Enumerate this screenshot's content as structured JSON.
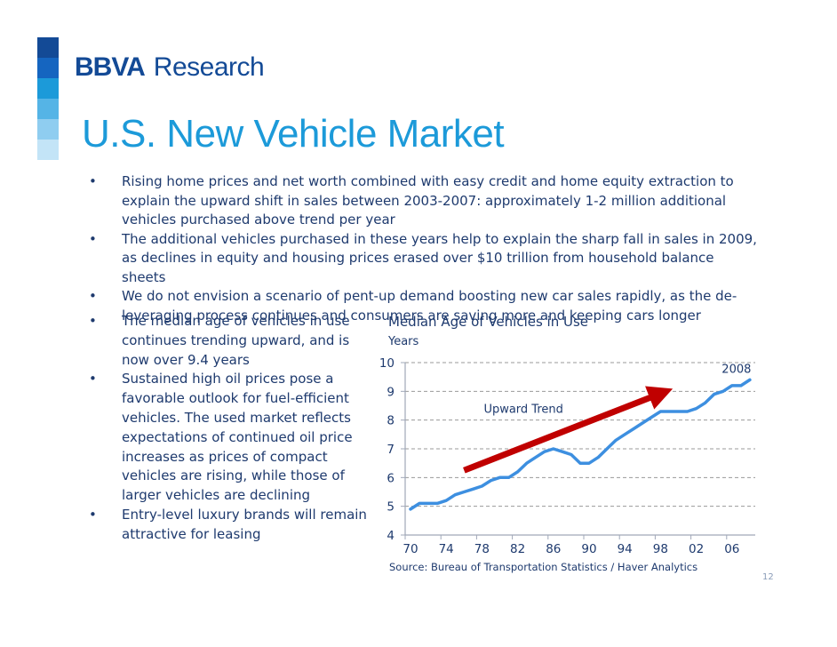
{
  "brand": {
    "logo_text": "BBVA",
    "sub_text": "Research",
    "logo_colors": [
      "#134a96",
      "#1565c0",
      "#1c9ad9",
      "#55b4e6",
      "#8fcdf0",
      "#c3e4f7"
    ]
  },
  "title": "U.S. New Vehicle Market",
  "bullets_top": [
    {
      "marker": "•",
      "text": "Rising home prices and net worth combined with easy credit and home equity extraction to explain the upward shift in sales between 2003-2007: approximately 1-2 million additional vehicles purchased above trend per year"
    },
    {
      "marker": "•",
      "text": "The additional vehicles purchased in these years help to explain the sharp fall in sales in 2009, as declines in equity and housing prices erased over $10 trillion from household balance sheets"
    },
    {
      "marker": "•",
      "text": "We do not envision a scenario of pent-up demand boosting new car sales rapidly, as the de-leveraging process continues and consumers are saving more and keeping cars longer"
    }
  ],
  "bullets_left": [
    {
      "marker": "•",
      "text": "The median age of vehicles in use continues trending upward, and is now over 9.4 years"
    },
    {
      "marker": "•",
      "text": "Sustained high oil prices pose a favorable outlook for fuel-efficient vehicles. The used market reflects expectations of continued oil price increases as prices of compact vehicles are rising, while those of larger vehicles are declining"
    },
    {
      "marker": "•",
      "text": "Entry-level luxury brands will remain attractive for leasing"
    }
  ],
  "chart_data": {
    "type": "line",
    "title": "Median Age of Vehicles in Use",
    "ylabel": "Years",
    "xlabel": "",
    "ylim": [
      4,
      10
    ],
    "xlim": [
      1970,
      2009
    ],
    "yticks": [
      4,
      5,
      6,
      7,
      8,
      9,
      10
    ],
    "xticks": [
      1970,
      1974,
      1978,
      1982,
      1986,
      1990,
      1994,
      1998,
      2002,
      2006
    ],
    "xtick_labels": [
      "70",
      "74",
      "78",
      "82",
      "86",
      "90",
      "94",
      "98",
      "02",
      "06"
    ],
    "grid": "horizontal-dashed",
    "series": [
      {
        "name": "Median Age of Vehicles in Use",
        "color": "#3d8fe0",
        "x": [
          1970,
          1971,
          1972,
          1973,
          1974,
          1975,
          1976,
          1977,
          1978,
          1979,
          1980,
          1981,
          1982,
          1983,
          1984,
          1985,
          1986,
          1987,
          1988,
          1989,
          1990,
          1991,
          1992,
          1993,
          1994,
          1995,
          1996,
          1997,
          1998,
          1999,
          2000,
          2001,
          2002,
          2003,
          2004,
          2005,
          2006,
          2007,
          2008
        ],
        "values": [
          4.9,
          5.1,
          5.1,
          5.1,
          5.2,
          5.4,
          5.5,
          5.6,
          5.7,
          5.9,
          6.0,
          6.0,
          6.2,
          6.5,
          6.7,
          6.9,
          7.0,
          6.9,
          6.8,
          6.5,
          6.5,
          6.7,
          7.0,
          7.3,
          7.5,
          7.7,
          7.9,
          8.1,
          8.3,
          8.3,
          8.3,
          8.3,
          8.4,
          8.6,
          8.9,
          9.0,
          9.2,
          9.2,
          9.4
        ]
      }
    ],
    "annotations": [
      {
        "text": "Upward Trend",
        "type": "arrow",
        "color": "#c00000",
        "from": {
          "x": 1976,
          "y": 6.25
        },
        "to": {
          "x": 1998.2,
          "y": 8.95
        }
      },
      {
        "text": "2008",
        "type": "label",
        "x": 2006.5,
        "y": 9.65
      }
    ],
    "source": "Source: Bureau of Transportation Statistics / Haver Analytics"
  },
  "page_number": "12"
}
